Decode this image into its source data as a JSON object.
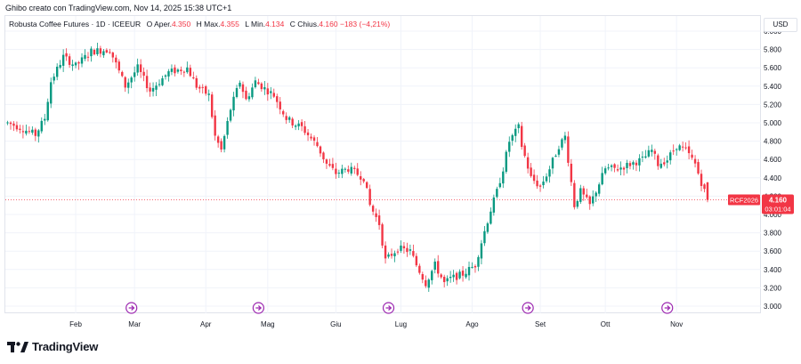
{
  "caption": "Ghibo creato con TradingView.com, Nov 14, 2025 15:38 UTC+1",
  "legend": {
    "symbol": "Robusta Coffee Futures · 1D · ICEEUR",
    "open_label": "O",
    "open_text": "Aper.",
    "open": "4.350",
    "high_label": "H",
    "high_text": "Max.",
    "high": "4.355",
    "low_label": "L",
    "low_text": "Min.",
    "low": "4.134",
    "close_label": "C",
    "close_text": "Chius.",
    "close": "4.160",
    "change": "−183 (−4,21%)"
  },
  "currency": "USD",
  "price_tag": {
    "ticker": "RCF2026",
    "price": "4.160",
    "countdown": "03:01:04"
  },
  "brand": "TradingView",
  "colors": {
    "up": "#089981",
    "down": "#f23645",
    "grid": "#f0f3fa",
    "text": "#131722",
    "event": "#9c27b0"
  },
  "chart_data": {
    "type": "candlestick",
    "title": "Robusta Coffee Futures",
    "interval": "1D",
    "exchange": "ICEEUR",
    "currency": "USD",
    "ylim": [
      3.0,
      6.0
    ],
    "yticks": [
      3.0,
      3.2,
      3.4,
      3.6,
      3.8,
      4.0,
      4.2,
      4.4,
      4.6,
      4.8,
      5.0,
      5.2,
      5.4,
      5.6,
      5.8,
      6.0
    ],
    "ytick_labels": [
      "3.000",
      "3.200",
      "3.400",
      "3.600",
      "3.800",
      "4.000",
      "4.200",
      "4.400",
      "4.600",
      "4.800",
      "5.000",
      "5.200",
      "5.400",
      "5.600",
      "5.800",
      "6.000"
    ],
    "xticks": [
      {
        "label": "Feb",
        "day": 22
      },
      {
        "label": "Mar",
        "day": 41
      },
      {
        "label": "Apr",
        "day": 64
      },
      {
        "label": "Mag",
        "day": 84
      },
      {
        "label": "Giu",
        "day": 106
      },
      {
        "label": "Lug",
        "day": 127
      },
      {
        "label": "Ago",
        "day": 150
      },
      {
        "label": "Set",
        "day": 172
      },
      {
        "label": "Ott",
        "day": 193
      },
      {
        "label": "Nov",
        "day": 216
      }
    ],
    "event_days": [
      40,
      81,
      123,
      168,
      213
    ],
    "last_close": 4.16,
    "anchors": [
      [
        0,
        5.0
      ],
      [
        4,
        4.95
      ],
      [
        9,
        4.87
      ],
      [
        12,
        5.05
      ],
      [
        14,
        5.45
      ],
      [
        18,
        5.72
      ],
      [
        22,
        5.62
      ],
      [
        27,
        5.78
      ],
      [
        33,
        5.8
      ],
      [
        38,
        5.4
      ],
      [
        42,
        5.6
      ],
      [
        46,
        5.35
      ],
      [
        52,
        5.55
      ],
      [
        58,
        5.6
      ],
      [
        61,
        5.4
      ],
      [
        65,
        5.3
      ],
      [
        67,
        4.85
      ],
      [
        69,
        4.7
      ],
      [
        72,
        5.15
      ],
      [
        75,
        5.45
      ],
      [
        77,
        5.25
      ],
      [
        80,
        5.45
      ],
      [
        84,
        5.35
      ],
      [
        86,
        5.3
      ],
      [
        90,
        5.05
      ],
      [
        92,
        5.0
      ],
      [
        95,
        4.95
      ],
      [
        100,
        4.75
      ],
      [
        103,
        4.55
      ],
      [
        106,
        4.45
      ],
      [
        110,
        4.5
      ],
      [
        115,
        4.4
      ],
      [
        117,
        4.1
      ],
      [
        120,
        3.9
      ],
      [
        122,
        3.5
      ],
      [
        126,
        3.63
      ],
      [
        130,
        3.6
      ],
      [
        132,
        3.45
      ],
      [
        135,
        3.25
      ],
      [
        138,
        3.45
      ],
      [
        141,
        3.25
      ],
      [
        143,
        3.3
      ],
      [
        147,
        3.35
      ],
      [
        151,
        3.45
      ],
      [
        153,
        3.7
      ],
      [
        156,
        4.05
      ],
      [
        158,
        4.25
      ],
      [
        160,
        4.5
      ],
      [
        162,
        4.8
      ],
      [
        165,
        4.95
      ],
      [
        166,
        4.75
      ],
      [
        169,
        4.4
      ],
      [
        172,
        4.3
      ],
      [
        175,
        4.5
      ],
      [
        178,
        4.75
      ],
      [
        180,
        4.85
      ],
      [
        183,
        4.1
      ],
      [
        185,
        4.25
      ],
      [
        188,
        4.1
      ],
      [
        193,
        4.5
      ],
      [
        197,
        4.5
      ],
      [
        201,
        4.55
      ],
      [
        205,
        4.6
      ],
      [
        208,
        4.7
      ],
      [
        210,
        4.55
      ],
      [
        213,
        4.6
      ],
      [
        216,
        4.75
      ],
      [
        219,
        4.7
      ],
      [
        222,
        4.55
      ],
      [
        224,
        4.35
      ],
      [
        226,
        4.16
      ]
    ],
    "final_candle": {
      "open": 4.35,
      "high": 4.355,
      "low": 4.134,
      "close": 4.16
    }
  }
}
